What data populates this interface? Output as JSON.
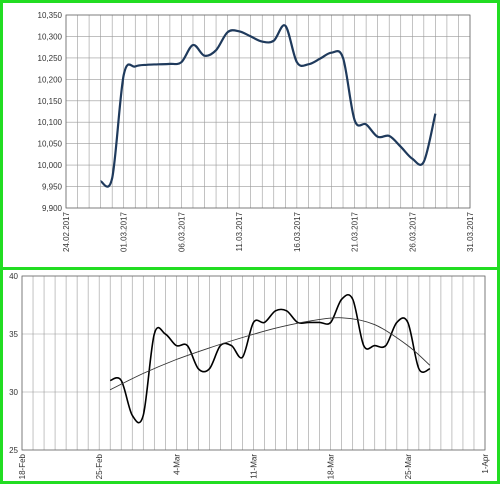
{
  "chart_data": [
    {
      "type": "line",
      "x_type": "date",
      "xlim": [
        "2017-02-24",
        "2017-03-31"
      ],
      "x_ticks": [
        "24.02.2017",
        "01.03.2017",
        "06.03.2017",
        "11.03.2017",
        "16.03.2017",
        "21.03.2017",
        "26.03.2017",
        "31.03.2017"
      ],
      "ylim": [
        9900,
        10350
      ],
      "y_ticks": [
        "9,900",
        "9,950",
        "10,000",
        "10,050",
        "10,100",
        "10,150",
        "10,200",
        "10,250",
        "10,300",
        "10,350"
      ],
      "grid": true,
      "line_color": "#1f3a5c",
      "series": [
        {
          "x": [
            "2017-02-27",
            "2017-02-28",
            "2017-03-01",
            "2017-03-02",
            "2017-03-03",
            "2017-03-04",
            "2017-03-05",
            "2017-03-06",
            "2017-03-07",
            "2017-03-08",
            "2017-03-09",
            "2017-03-10",
            "2017-03-11",
            "2017-03-12",
            "2017-03-13",
            "2017-03-14",
            "2017-03-15",
            "2017-03-16",
            "2017-03-17",
            "2017-03-18",
            "2017-03-19",
            "2017-03-20",
            "2017-03-21",
            "2017-03-22",
            "2017-03-23",
            "2017-03-24",
            "2017-03-25",
            "2017-03-26",
            "2017-03-27",
            "2017-03-28"
          ],
          "y": [
            9962,
            9970,
            10210,
            10230,
            10234,
            10235,
            10236,
            10240,
            10280,
            10255,
            10268,
            10310,
            10312,
            10300,
            10288,
            10290,
            10325,
            10240,
            10235,
            10248,
            10262,
            10250,
            10105,
            10095,
            10066,
            10068,
            10043,
            10015,
            10008,
            10120
          ]
        }
      ]
    },
    {
      "type": "line",
      "x_type": "date",
      "xlim": [
        "2017-02-18",
        "2017-04-01"
      ],
      "x_ticks": [
        "18-Feb",
        "25-Feb",
        "4-Mar",
        "11-Mar",
        "18-Mar",
        "25-Mar",
        "1-Apr"
      ],
      "ylim": [
        25,
        40
      ],
      "y_ticks": [
        "25",
        "30",
        "35",
        "40"
      ],
      "grid": true,
      "line_color": "#000000",
      "series": [
        {
          "x": [
            "2017-02-26",
            "2017-02-27",
            "2017-02-28",
            "2017-03-01",
            "2017-03-02",
            "2017-03-03",
            "2017-03-04",
            "2017-03-05",
            "2017-03-06",
            "2017-03-07",
            "2017-03-08",
            "2017-03-09",
            "2017-03-10",
            "2017-03-11",
            "2017-03-12",
            "2017-03-13",
            "2017-03-14",
            "2017-03-15",
            "2017-03-16",
            "2017-03-17",
            "2017-03-18",
            "2017-03-19",
            "2017-03-20",
            "2017-03-21",
            "2017-03-22",
            "2017-03-23",
            "2017-03-24",
            "2017-03-25",
            "2017-03-26",
            "2017-03-27"
          ],
          "y": [
            31,
            31,
            28,
            28,
            35,
            35,
            34,
            34,
            32,
            32,
            34,
            34,
            33,
            36,
            36,
            37,
            37,
            36,
            36,
            36,
            36,
            38,
            38,
            34,
            34,
            34,
            36,
            36,
            32,
            32
          ]
        },
        {
          "trend": true,
          "x": [
            "2017-02-26",
            "2017-03-01",
            "2017-03-04",
            "2017-03-07",
            "2017-03-10",
            "2017-03-13",
            "2017-03-16",
            "2017-03-19",
            "2017-03-22",
            "2017-03-25",
            "2017-03-27"
          ],
          "y": [
            30.2,
            31.6,
            32.8,
            33.8,
            34.7,
            35.5,
            36.1,
            36.4,
            35.8,
            34.0,
            32.3
          ]
        }
      ]
    }
  ]
}
